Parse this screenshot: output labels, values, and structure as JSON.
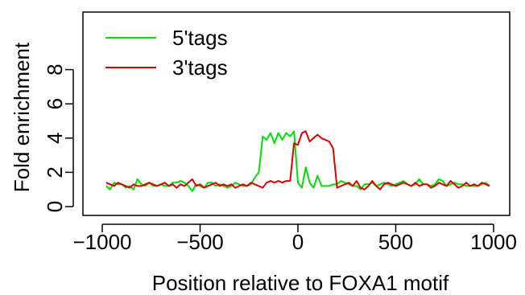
{
  "chart_data": {
    "type": "line",
    "xlabel": "Position relative to FOXA1 motif",
    "ylabel": "Fold enrichment",
    "xlim": [
      -1000,
      1000
    ],
    "ylim": [
      0,
      10
    ],
    "xticks": [
      -1000,
      -500,
      0,
      500,
      1000
    ],
    "xtick_labels": [
      "−1000",
      "−500",
      "0",
      "500",
      "1000"
    ],
    "yticks": [
      0,
      2,
      4,
      6,
      8
    ],
    "ytick_labels": [
      "0",
      "2",
      "4",
      "6",
      "8"
    ],
    "grid": false,
    "legend_position": "top-left",
    "series": [
      {
        "name": "5'tags",
        "color": "#00e000",
        "x": [
          -980,
          -960,
          -940,
          -920,
          -900,
          -880,
          -860,
          -840,
          -820,
          -800,
          -780,
          -760,
          -740,
          -720,
          -700,
          -680,
          -660,
          -640,
          -620,
          -600,
          -580,
          -560,
          -540,
          -520,
          -500,
          -480,
          -460,
          -440,
          -420,
          -400,
          -380,
          -360,
          -340,
          -320,
          -300,
          -280,
          -260,
          -240,
          -220,
          -200,
          -180,
          -160,
          -140,
          -120,
          -100,
          -80,
          -60,
          -40,
          -20,
          0,
          20,
          40,
          60,
          80,
          100,
          120,
          140,
          160,
          180,
          200,
          220,
          240,
          260,
          280,
          300,
          320,
          340,
          360,
          380,
          400,
          420,
          440,
          460,
          480,
          500,
          520,
          540,
          560,
          580,
          600,
          620,
          640,
          660,
          680,
          700,
          720,
          740,
          760,
          780,
          800,
          820,
          840,
          860,
          880,
          900,
          920,
          940,
          960,
          980
        ],
        "values": [
          1.2,
          1.0,
          1.4,
          1.3,
          1.3,
          1.1,
          1.2,
          1.0,
          1.6,
          1.3,
          1.2,
          1.4,
          1.2,
          1.2,
          1.3,
          1.2,
          1.2,
          1.4,
          1.4,
          1.5,
          1.4,
          1.2,
          0.9,
          1.3,
          1.2,
          1.1,
          1.4,
          1.4,
          1.2,
          1.3,
          1.2,
          1.1,
          1.2,
          1.4,
          1.3,
          1.2,
          1.2,
          1.3,
          1.7,
          2.0,
          4.1,
          3.9,
          4.3,
          3.7,
          4.3,
          3.9,
          4.3,
          4.1,
          4.4,
          1.4,
          1.1,
          2.3,
          1.4,
          1.1,
          1.8,
          1.2,
          1.2,
          1.2,
          1.3,
          1.3,
          1.5,
          1.4,
          1.3,
          1.2,
          1.2,
          1.0,
          1.3,
          1.3,
          1.4,
          1.2,
          1.3,
          1.4,
          1.3,
          1.2,
          1.3,
          1.4,
          1.5,
          1.3,
          1.2,
          1.3,
          1.6,
          1.3,
          1.3,
          1.2,
          1.3,
          1.6,
          1.5,
          1.2,
          1.3,
          1.4,
          1.3,
          1.3,
          1.2,
          1.2,
          1.2,
          1.2,
          1.3,
          1.4,
          1.2
        ]
      },
      {
        "name": "3'tags",
        "color": "#e00000",
        "x": [
          -980,
          -960,
          -940,
          -920,
          -900,
          -880,
          -860,
          -840,
          -820,
          -800,
          -780,
          -760,
          -740,
          -720,
          -700,
          -680,
          -660,
          -640,
          -620,
          -600,
          -580,
          -560,
          -540,
          -520,
          -500,
          -480,
          -460,
          -440,
          -420,
          -400,
          -380,
          -360,
          -340,
          -320,
          -300,
          -280,
          -260,
          -240,
          -220,
          -200,
          -180,
          -160,
          -140,
          -120,
          -100,
          -80,
          -60,
          -40,
          -20,
          0,
          20,
          40,
          60,
          80,
          100,
          120,
          140,
          160,
          180,
          200,
          220,
          240,
          260,
          280,
          300,
          320,
          340,
          360,
          380,
          400,
          420,
          440,
          460,
          480,
          500,
          520,
          540,
          560,
          580,
          600,
          620,
          640,
          660,
          680,
          700,
          720,
          740,
          760,
          780,
          800,
          820,
          840,
          860,
          880,
          900,
          920,
          940,
          960,
          980
        ],
        "values": [
          1.4,
          1.3,
          1.2,
          1.4,
          1.3,
          1.2,
          1.1,
          1.3,
          1.2,
          1.2,
          1.3,
          1.4,
          1.3,
          1.2,
          1.3,
          1.4,
          1.2,
          1.3,
          1.1,
          1.3,
          1.2,
          1.4,
          1.6,
          1.2,
          1.3,
          1.1,
          1.2,
          1.3,
          1.4,
          1.2,
          1.3,
          1.2,
          1.3,
          1.1,
          1.2,
          1.3,
          1.2,
          1.4,
          1.3,
          1.2,
          1.1,
          1.4,
          1.5,
          1.4,
          1.5,
          1.4,
          1.5,
          1.5,
          3.7,
          3.6,
          4.3,
          4.4,
          3.8,
          4.0,
          4.2,
          4.0,
          3.9,
          3.8,
          3.4,
          1.1,
          1.2,
          1.3,
          1.4,
          1.2,
          1.5,
          1.1,
          1.0,
          1.2,
          1.5,
          1.2,
          1.0,
          1.3,
          1.4,
          1.3,
          1.2,
          1.3,
          1.4,
          1.3,
          1.2,
          1.4,
          1.2,
          1.3,
          1.3,
          1.1,
          1.2,
          1.4,
          1.3,
          1.2,
          1.5,
          1.3,
          1.1,
          1.2,
          1.4,
          1.2,
          1.3,
          1.2,
          1.4,
          1.3,
          1.2
        ]
      }
    ]
  }
}
